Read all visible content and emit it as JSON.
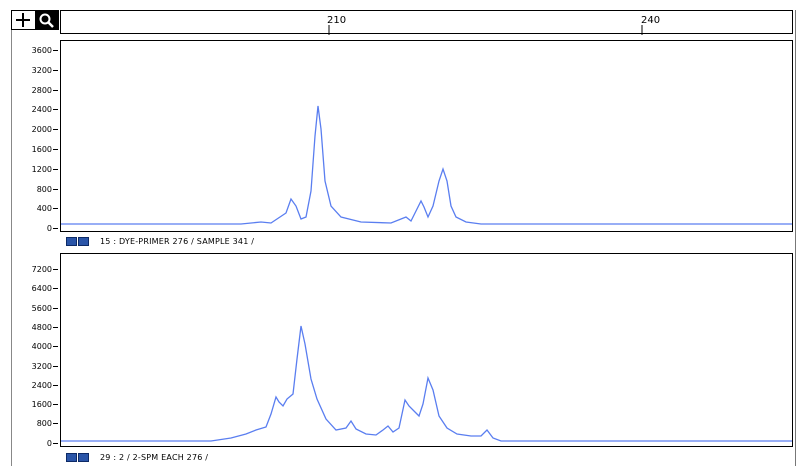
{
  "toolbar": {
    "tools": [
      {
        "name": "crosshair-tool",
        "icon": "crosshair-icon"
      },
      {
        "name": "zoom-tool",
        "icon": "magnifier-icon"
      }
    ]
  },
  "ruler": {
    "ticks": [
      {
        "label": "210",
        "value": 210
      },
      {
        "label": "240",
        "value": 240
      }
    ]
  },
  "trace_color": "#5a7ef0",
  "panels": [
    {
      "id": "top",
      "y_ticks": [
        "3600",
        "3200",
        "2800",
        "2400",
        "2000",
        "1600",
        "1200",
        "800",
        "400",
        "0"
      ],
      "label": "15 : DYE-PRIMER 276 / SAMPLE 341 /"
    },
    {
      "id": "bottom",
      "y_ticks": [
        "7200",
        "6400",
        "5600",
        "4800",
        "4000",
        "3200",
        "2400",
        "1600",
        "800",
        "0"
      ],
      "label": "29 : 2 / 2-SPM EACH 276 /"
    }
  ]
}
